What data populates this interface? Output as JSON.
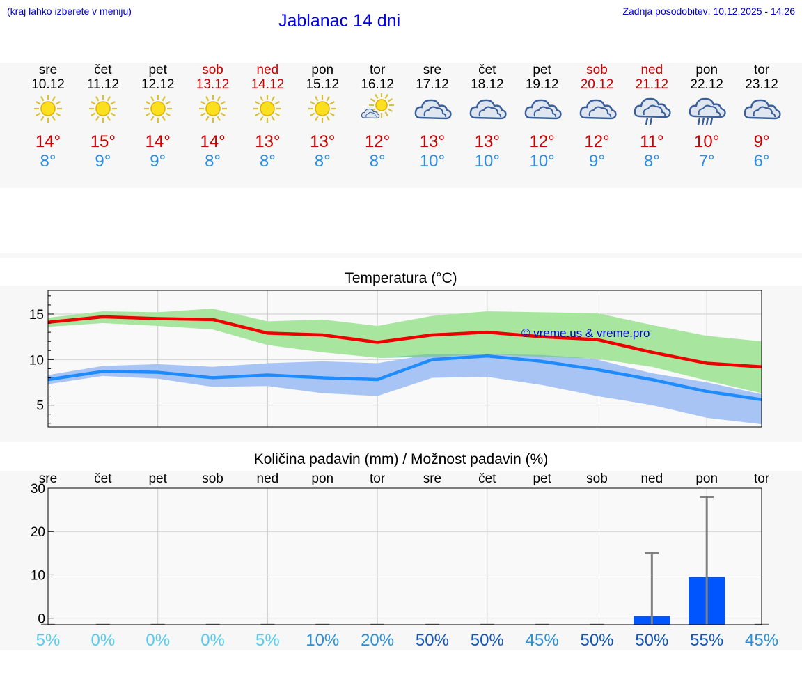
{
  "header": {
    "menu_hint": "(kraj lahko izberete v meniju)",
    "title": "Jablanac 14 dni",
    "updated": "Zadnja posodobitev: 10.12.2025 - 14:26"
  },
  "days": [
    {
      "name": "sre",
      "date": "10.12",
      "weekend": false,
      "icon": "sun-icon",
      "max": "14°",
      "min": "8°"
    },
    {
      "name": "čet",
      "date": "11.12",
      "weekend": false,
      "icon": "sun-icon",
      "max": "15°",
      "min": "9°"
    },
    {
      "name": "pet",
      "date": "12.12",
      "weekend": false,
      "icon": "sun-icon",
      "max": "14°",
      "min": "9°"
    },
    {
      "name": "sob",
      "date": "13.12",
      "weekend": true,
      "icon": "sun-icon",
      "max": "14°",
      "min": "8°"
    },
    {
      "name": "ned",
      "date": "14.12",
      "weekend": true,
      "icon": "sun-icon",
      "max": "13°",
      "min": "8°"
    },
    {
      "name": "pon",
      "date": "15.12",
      "weekend": false,
      "icon": "sun-icon",
      "max": "13°",
      "min": "8°"
    },
    {
      "name": "tor",
      "date": "16.12",
      "weekend": false,
      "icon": "sun-cloud-icon",
      "max": "12°",
      "min": "8°"
    },
    {
      "name": "sre",
      "date": "17.12",
      "weekend": false,
      "icon": "cloud-icon",
      "max": "13°",
      "min": "10°"
    },
    {
      "name": "čet",
      "date": "18.12",
      "weekend": false,
      "icon": "cloud-icon",
      "max": "13°",
      "min": "10°"
    },
    {
      "name": "pet",
      "date": "19.12",
      "weekend": false,
      "icon": "cloud-icon",
      "max": "12°",
      "min": "10°"
    },
    {
      "name": "sob",
      "date": "20.12",
      "weekend": true,
      "icon": "cloud-icon",
      "max": "12°",
      "min": "9°"
    },
    {
      "name": "ned",
      "date": "21.12",
      "weekend": true,
      "icon": "rain-cloud-icon",
      "max": "11°",
      "min": "8°"
    },
    {
      "name": "pon",
      "date": "22.12",
      "weekend": false,
      "icon": "heavy-rain-cloud-icon",
      "max": "10°",
      "min": "7°"
    },
    {
      "name": "tor",
      "date": "23.12",
      "weekend": false,
      "icon": "cloud-icon",
      "max": "9°",
      "min": "6°"
    }
  ],
  "colors": {
    "max_line": "#ee0000",
    "min_line": "#1e8cff",
    "max_band": "#a8e6a0",
    "min_band": "#a8c4f4",
    "overlap_band": "#82c8aa",
    "bar": "#0055ff",
    "whisker": "#808080",
    "weekend": "#cc0000",
    "min_text": "#2a8ee8",
    "pct_light": "#55ccee",
    "pct_mid": "#2a90d8",
    "pct_dark": "#1155bb",
    "watermark": "#0000dd"
  },
  "chart_data": [
    {
      "type": "line",
      "title": "Temperatura (°C)",
      "watermark": "© vreme.us & vreme.pro",
      "ylim": [
        2.6,
        17.6
      ],
      "yticks": [
        5,
        10,
        15
      ],
      "grid": true,
      "series": [
        {
          "name": "max",
          "values": [
            14.1,
            14.7,
            14.5,
            14.4,
            12.9,
            12.7,
            11.9,
            12.7,
            13.0,
            12.5,
            12.2,
            10.8,
            9.6,
            9.2
          ],
          "band_low": [
            13.6,
            14.0,
            13.7,
            13.3,
            11.6,
            10.8,
            10.2,
            10.3,
            10.6,
            10.3,
            10.1,
            9.2,
            7.7,
            6.3
          ],
          "band_high": [
            14.6,
            15.3,
            15.2,
            15.6,
            14.2,
            14.4,
            13.7,
            14.8,
            15.3,
            15.2,
            15.1,
            13.8,
            12.6,
            12.0
          ]
        },
        {
          "name": "min",
          "values": [
            7.8,
            8.7,
            8.6,
            8.0,
            8.3,
            8.0,
            7.8,
            10.0,
            10.4,
            9.8,
            8.9,
            7.8,
            6.5,
            5.6
          ],
          "band_low": [
            7.3,
            8.2,
            7.9,
            7.0,
            7.1,
            6.3,
            6.0,
            8.0,
            8.1,
            7.2,
            6.0,
            5.0,
            3.6,
            2.9
          ],
          "band_high": [
            8.3,
            9.3,
            9.5,
            9.2,
            9.6,
            9.8,
            9.6,
            10.6,
            10.6,
            10.5,
            10.0,
            8.5,
            7.5,
            6.2
          ]
        }
      ]
    },
    {
      "type": "bar",
      "title": "Količina padavin (mm) / Možnost padavin (%)",
      "categories": [
        "sre",
        "čet",
        "pet",
        "sob",
        "ned",
        "pon",
        "tor",
        "sre",
        "čet",
        "pet",
        "sob",
        "ned",
        "pon",
        "tor"
      ],
      "ylim": [
        -1.5,
        30
      ],
      "yticks": [
        0,
        10,
        20,
        30
      ],
      "ytick_labels": [
        "0",
        "10",
        "20",
        "30"
      ],
      "values": [
        0,
        0,
        0,
        0,
        0,
        0,
        0,
        0,
        0,
        0,
        0,
        0.5,
        9.5,
        0
      ],
      "whisker_high": [
        0,
        0,
        0,
        0,
        0,
        0,
        0,
        0,
        0,
        0,
        0,
        15,
        28,
        0
      ],
      "probability": [
        "5%",
        "0%",
        "0%",
        "0%",
        "5%",
        "10%",
        "20%",
        "50%",
        "50%",
        "45%",
        "50%",
        "50%",
        "55%",
        "45%"
      ],
      "probability_values": [
        5,
        0,
        0,
        0,
        5,
        10,
        20,
        50,
        50,
        45,
        50,
        50,
        55,
        45
      ]
    }
  ]
}
